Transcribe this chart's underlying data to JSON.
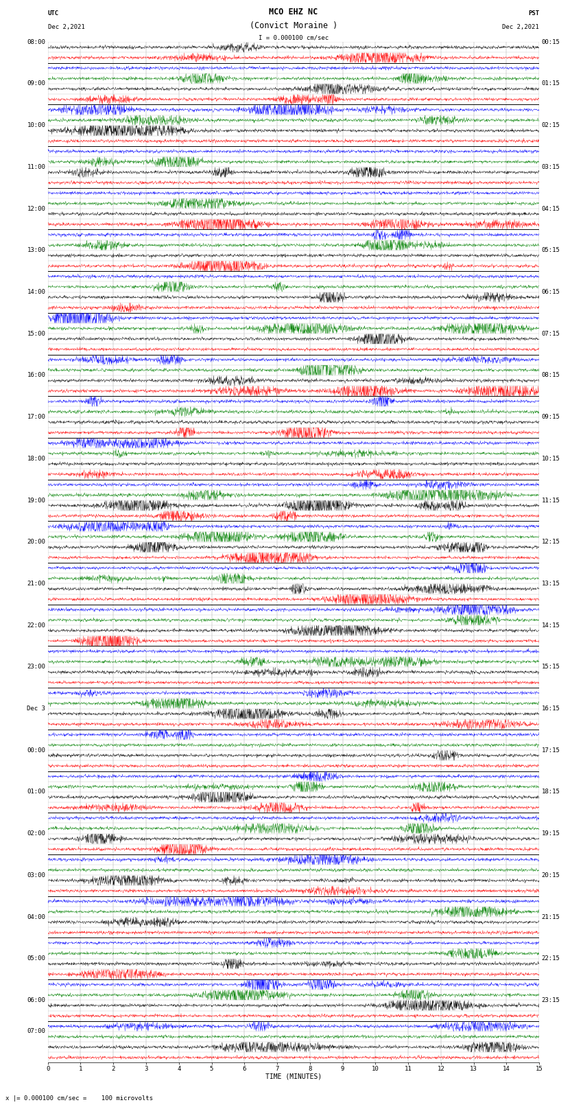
{
  "title_line1": "MCO EHZ NC",
  "title_line2": "(Convict Moraine )",
  "scale_text": "I = 0.000100 cm/sec",
  "utc_label": "UTC",
  "utc_date": "Dec 2,2021",
  "pst_label": "PST",
  "pst_date": "Dec 2,2021",
  "xlabel": "TIME (MINUTES)",
  "bottom_note": "x |= 0.000100 cm/sec =    100 microvolts",
  "xlim": [
    0,
    15
  ],
  "xticks": [
    0,
    1,
    2,
    3,
    4,
    5,
    6,
    7,
    8,
    9,
    10,
    11,
    12,
    13,
    14,
    15
  ],
  "colors": [
    "#000000",
    "#ff0000",
    "#0000ff",
    "#008000"
  ],
  "trace_amplitude": 0.38,
  "num_rows": 98,
  "fig_width": 8.5,
  "fig_height": 16.13,
  "background_color": "#ffffff",
  "hline_color": "#000000",
  "vgrid_color": "#888888",
  "hour_hline_color": "#000000",
  "title_fontsize": 8.5,
  "label_fontsize": 7,
  "tick_fontsize": 6.5,
  "utc_times": [
    "08:00",
    "",
    "",
    "",
    "09:00",
    "",
    "",
    "",
    "10:00",
    "",
    "",
    "",
    "11:00",
    "",
    "",
    "",
    "12:00",
    "",
    "",
    "",
    "13:00",
    "",
    "",
    "",
    "14:00",
    "",
    "",
    "",
    "15:00",
    "",
    "",
    "",
    "16:00",
    "",
    "",
    "",
    "17:00",
    "",
    "",
    "",
    "18:00",
    "",
    "",
    "",
    "19:00",
    "",
    "",
    "",
    "20:00",
    "",
    "",
    "",
    "21:00",
    "",
    "",
    "",
    "22:00",
    "",
    "",
    "",
    "23:00",
    "",
    "",
    "",
    "Dec 3",
    "",
    "",
    "",
    "00:00",
    "",
    "",
    "",
    "01:00",
    "",
    "",
    "",
    "02:00",
    "",
    "",
    "",
    "03:00",
    "",
    "",
    "",
    "04:00",
    "",
    "",
    "",
    "05:00",
    "",
    "",
    "",
    "06:00",
    "",
    "",
    "07:00",
    ""
  ],
  "pst_times": [
    "00:15",
    "",
    "",
    "",
    "01:15",
    "",
    "",
    "",
    "02:15",
    "",
    "",
    "",
    "03:15",
    "",
    "",
    "",
    "04:15",
    "",
    "",
    "",
    "05:15",
    "",
    "",
    "",
    "06:15",
    "",
    "",
    "",
    "07:15",
    "",
    "",
    "",
    "08:15",
    "",
    "",
    "",
    "09:15",
    "",
    "",
    "",
    "10:15",
    "",
    "",
    "",
    "11:15",
    "",
    "",
    "",
    "12:15",
    "",
    "",
    "",
    "13:15",
    "",
    "",
    "",
    "14:15",
    "",
    "",
    "",
    "15:15",
    "",
    "",
    "",
    "16:15",
    "",
    "",
    "",
    "17:15",
    "",
    "",
    "",
    "18:15",
    "",
    "",
    "",
    "19:15",
    "",
    "",
    "",
    "20:15",
    "",
    "",
    "",
    "21:15",
    "",
    "",
    "",
    "22:15",
    "",
    "",
    "",
    "23:15",
    "",
    "",
    ""
  ]
}
